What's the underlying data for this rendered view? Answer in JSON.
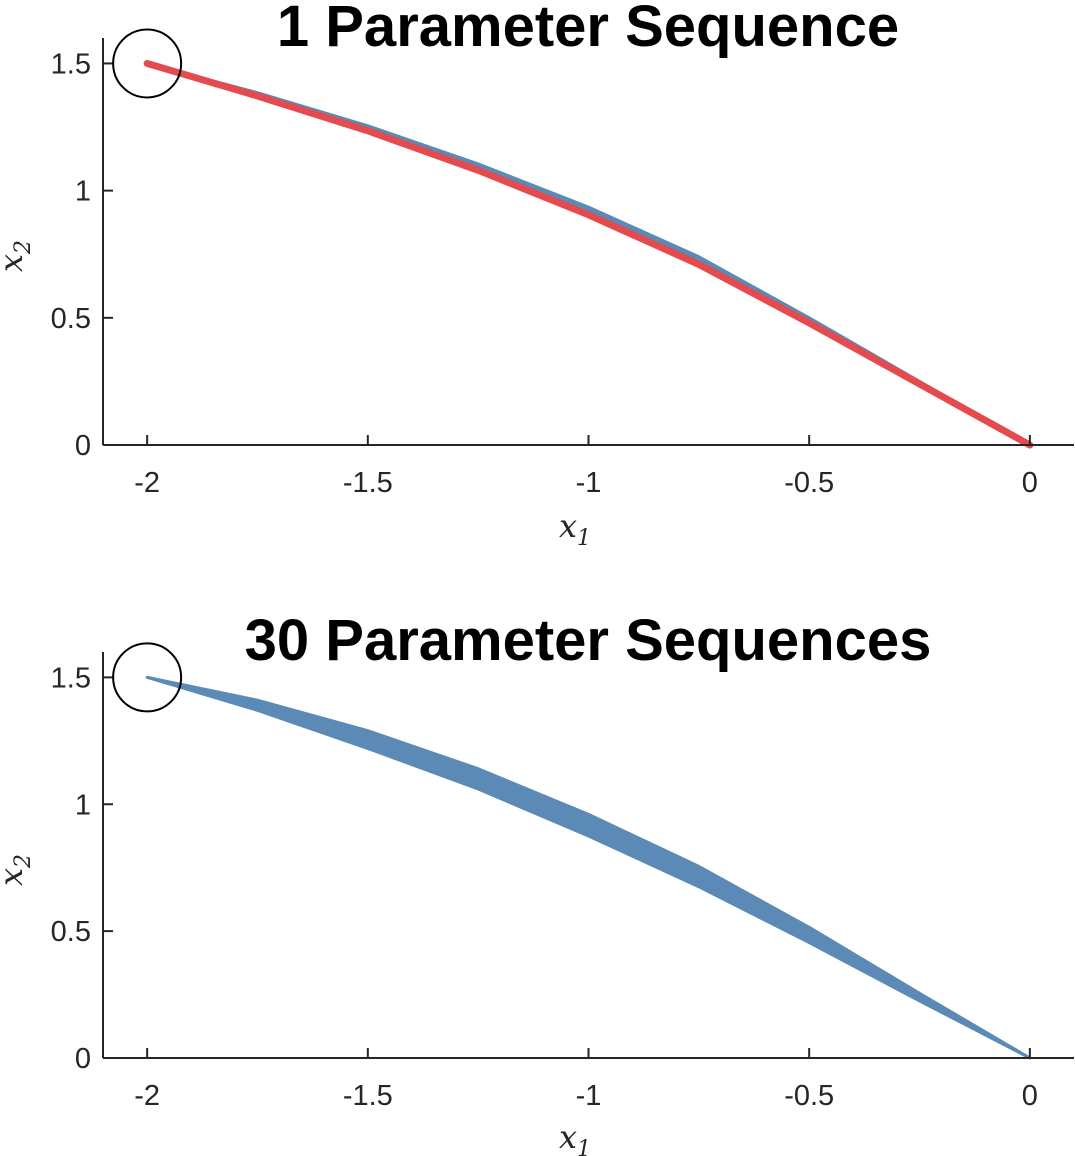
{
  "chart_data": [
    {
      "type": "area",
      "title": "1 Parameter Sequence",
      "xlabel": "x",
      "xlabel_sub": "1",
      "ylabel": "x",
      "ylabel_sub": "2",
      "xlim": [
        -2.1,
        0.1
      ],
      "ylim": [
        0,
        1.6
      ],
      "xticks": [
        -2,
        -1.5,
        -1,
        -0.5,
        0
      ],
      "xtick_labels": [
        "-2",
        "-1.5",
        "-1",
        "-0.5",
        "0"
      ],
      "yticks": [
        0,
        0.5,
        1,
        1.5
      ],
      "ytick_labels": [
        "0",
        "0.5",
        "1",
        "1.5"
      ],
      "grid": false,
      "colors": {
        "band": "#5a8ab5",
        "line": "#e44b4f",
        "marker": "#000000"
      },
      "band_x": [
        -2,
        -1.75,
        -1.5,
        -1.25,
        -1,
        -0.75,
        -0.5,
        -0.25,
        0
      ],
      "band_upper": [
        1.5,
        1.385,
        1.255,
        1.105,
        0.935,
        0.74,
        0.5,
        0.25,
        0
      ],
      "band_lower": [
        1.5,
        1.37,
        1.23,
        1.075,
        0.9,
        0.705,
        0.475,
        0.235,
        0
      ],
      "line_x": [
        -2,
        -1.75,
        -1.5,
        -1.25,
        -1,
        -0.75,
        -0.5,
        -0.25,
        0
      ],
      "line_y": [
        1.5,
        1.372,
        1.235,
        1.08,
        0.905,
        0.71,
        0.48,
        0.24,
        0
      ],
      "marker": {
        "x": -2,
        "y": 1.5,
        "shape": "circle"
      }
    },
    {
      "type": "area",
      "title": "30 Parameter Sequences",
      "xlabel": "x",
      "xlabel_sub": "1",
      "ylabel": "x",
      "ylabel_sub": "2",
      "xlim": [
        -2.1,
        0.1
      ],
      "ylim": [
        0,
        1.6
      ],
      "xticks": [
        -2,
        -1.5,
        -1,
        -0.5,
        0
      ],
      "xtick_labels": [
        "-2",
        "-1.5",
        "-1",
        "-0.5",
        "0"
      ],
      "yticks": [
        0,
        0.5,
        1,
        1.5
      ],
      "ytick_labels": [
        "0",
        "0.5",
        "1",
        "1.5"
      ],
      "grid": false,
      "colors": {
        "band": "#5a8ab5",
        "marker": "#000000"
      },
      "band_x": [
        -2,
        -1.75,
        -1.5,
        -1.25,
        -1,
        -0.75,
        -0.5,
        -0.25,
        0
      ],
      "band_upper": [
        1.5,
        1.41,
        1.29,
        1.14,
        0.96,
        0.755,
        0.515,
        0.255,
        0
      ],
      "band_lower": [
        1.5,
        1.37,
        1.22,
        1.06,
        0.875,
        0.675,
        0.455,
        0.225,
        0
      ],
      "marker": {
        "x": -2,
        "y": 1.5,
        "shape": "circle"
      }
    }
  ]
}
